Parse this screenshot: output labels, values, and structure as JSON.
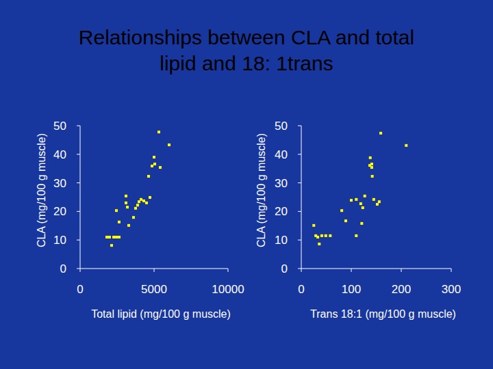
{
  "chart_data": [
    {
      "type": "scatter",
      "title": "Relationships between CLA and total lipid and 18: 1trans",
      "x_label": "Total lipid (mg/100 g muscle)",
      "y_label": "CLA (mg/100 g muscle)",
      "color": "#ffff00",
      "marker": "square",
      "grid": false,
      "xlim": [
        0,
        10000
      ],
      "xticks": [
        0,
        5000,
        10000
      ],
      "ylim": [
        0,
        50
      ],
      "yticks": [
        0,
        10,
        20,
        30,
        40,
        50
      ],
      "x": [
        5324,
        6020,
        5000,
        5046,
        4861,
        5417,
        4630,
        1805,
        1991,
        2130,
        2269,
        2454,
        2639,
        2454,
        2639,
        3102,
        3102,
        3194,
        3287,
        3889,
        3981,
        4120,
        4306,
        4491,
        4722,
        3611,
        3750
      ],
      "values": [
        47.8,
        43.3,
        39.0,
        36.6,
        35.9,
        35.4,
        32.3,
        11.0,
        11.0,
        8.1,
        11.0,
        11.0,
        11.0,
        20.3,
        16.3,
        25.4,
        23.0,
        21.5,
        15.1,
        22.2,
        23.4,
        24.2,
        23.7,
        23.0,
        24.9,
        17.9,
        21.1
      ]
    },
    {
      "type": "scatter",
      "x_label": "Trans 18:1 (mg/100 g muscle)",
      "y_label": "CLA (mg/100 g muscle)",
      "color": "#ffff00",
      "marker": "square",
      "grid": false,
      "xlim": [
        0,
        300
      ],
      "xticks": [
        0,
        100,
        200,
        300
      ],
      "ylim": [
        0,
        50
      ],
      "yticks": [
        0,
        10,
        20,
        30,
        40,
        50
      ],
      "x": [
        159,
        210,
        138,
        141,
        137,
        141,
        142,
        29,
        33,
        36,
        41,
        49,
        58,
        81,
        89,
        100,
        110,
        119,
        127,
        123,
        145,
        156,
        152,
        110,
        121,
        25
      ],
      "values": [
        47.4,
        43.1,
        38.8,
        36.6,
        36.1,
        35.4,
        32.3,
        11.5,
        11.0,
        8.6,
        11.5,
        11.5,
        11.5,
        20.3,
        16.7,
        23.9,
        24.2,
        22.7,
        25.4,
        21.3,
        24.2,
        23.4,
        22.5,
        11.5,
        15.8,
        15.1
      ]
    }
  ]
}
